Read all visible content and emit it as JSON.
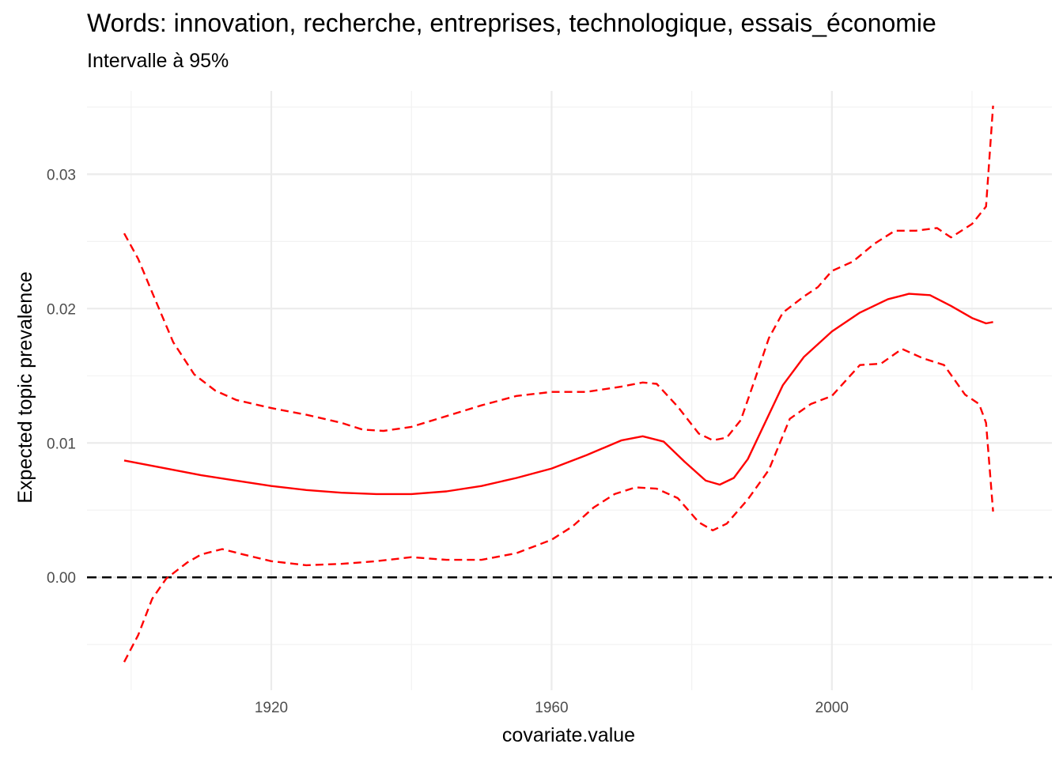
{
  "chart_data": {
    "type": "line",
    "title": "Words: innovation, recherche, entreprises, technologique, essais_économie",
    "subtitle": "Intervalle à 95%",
    "xlabel": "covariate.value",
    "ylabel": "Expected topic prevalence",
    "xlim": [
      1893.7,
      2031.4
    ],
    "ylim": [
      -0.0084,
      0.0362
    ],
    "x_ticks": [
      1920,
      1960,
      2000
    ],
    "x_tick_labels": [
      "1920",
      "1960",
      "2000"
    ],
    "x_minor_ticks": [
      1900,
      1940,
      1980,
      2020
    ],
    "y_ticks": [
      0.0,
      0.01,
      0.02,
      0.03
    ],
    "y_tick_labels": [
      "0.00",
      "0.01",
      "0.02",
      "0.03"
    ],
    "y_minor_ticks": [
      -0.005,
      0.005,
      0.015,
      0.025,
      0.035
    ],
    "grid": true,
    "reference_line": {
      "y": 0,
      "style": "dashed",
      "color": "#000000"
    },
    "series": [
      {
        "role": "estimate",
        "style": "solid",
        "color": "#ff0000",
        "x": [
          1899,
          1905,
          1910,
          1915,
          1920,
          1925,
          1930,
          1935,
          1940,
          1945,
          1950,
          1955,
          1960,
          1965,
          1970,
          1973,
          1976,
          1979,
          1982,
          1984,
          1986,
          1988,
          1990,
          1993,
          1996,
          2000,
          2004,
          2008,
          2011,
          2014,
          2017,
          2020,
          2022,
          2023
        ],
        "y": [
          0.0087,
          0.0081,
          0.0076,
          0.0072,
          0.0068,
          0.0065,
          0.0063,
          0.0062,
          0.0062,
          0.0064,
          0.0068,
          0.0074,
          0.0081,
          0.0091,
          0.0102,
          0.0105,
          0.0101,
          0.0086,
          0.0072,
          0.0069,
          0.0074,
          0.0088,
          0.011,
          0.0143,
          0.0164,
          0.0183,
          0.0197,
          0.0207,
          0.0211,
          0.021,
          0.0202,
          0.0193,
          0.0189,
          0.019
        ]
      },
      {
        "role": "upper-bound",
        "style": "dashed",
        "color": "#ff0000",
        "x": [
          1899,
          1901,
          1903,
          1906,
          1909,
          1912,
          1915,
          1920,
          1925,
          1930,
          1933,
          1936,
          1940,
          1945,
          1950,
          1955,
          1960,
          1965,
          1970,
          1973,
          1975,
          1978,
          1981,
          1983,
          1985,
          1987,
          1989,
          1991,
          1993,
          1996,
          1998,
          2000,
          2003,
          2006,
          2009,
          2012,
          2015,
          2017,
          2020,
          2022,
          2023
        ],
        "y": [
          0.0256,
          0.0237,
          0.0212,
          0.0175,
          0.0151,
          0.0139,
          0.0132,
          0.0126,
          0.0121,
          0.0115,
          0.011,
          0.0109,
          0.0112,
          0.012,
          0.0128,
          0.0135,
          0.0138,
          0.0138,
          0.0142,
          0.0145,
          0.0144,
          0.0127,
          0.0107,
          0.0102,
          0.0104,
          0.0117,
          0.0147,
          0.0178,
          0.0197,
          0.0209,
          0.0216,
          0.0228,
          0.0235,
          0.0248,
          0.0258,
          0.0258,
          0.026,
          0.0253,
          0.0263,
          0.0276,
          0.0351
        ]
      },
      {
        "role": "lower-bound",
        "style": "dashed",
        "color": "#ff0000",
        "x": [
          1899,
          1901,
          1903,
          1905,
          1908,
          1910,
          1913,
          1916,
          1920,
          1925,
          1930,
          1935,
          1940,
          1945,
          1950,
          1955,
          1960,
          1963,
          1966,
          1969,
          1972,
          1975,
          1978,
          1981,
          1983,
          1985,
          1988,
          1991,
          1994,
          1997,
          2000,
          2004,
          2007,
          2010,
          2013,
          2016,
          2019,
          2021,
          2022,
          2023
        ],
        "y": [
          -0.0063,
          -0.0043,
          -0.0016,
          -0.0001,
          0.0011,
          0.0017,
          0.0021,
          0.0017,
          0.0012,
          0.0009,
          0.001,
          0.0012,
          0.0015,
          0.0013,
          0.0013,
          0.0018,
          0.0028,
          0.0038,
          0.0052,
          0.0062,
          0.0067,
          0.0066,
          0.0059,
          0.0041,
          0.0035,
          0.004,
          0.0058,
          0.008,
          0.0118,
          0.0129,
          0.0135,
          0.0158,
          0.0159,
          0.017,
          0.0163,
          0.0158,
          0.0136,
          0.0129,
          0.0115,
          0.0049
        ]
      }
    ]
  }
}
